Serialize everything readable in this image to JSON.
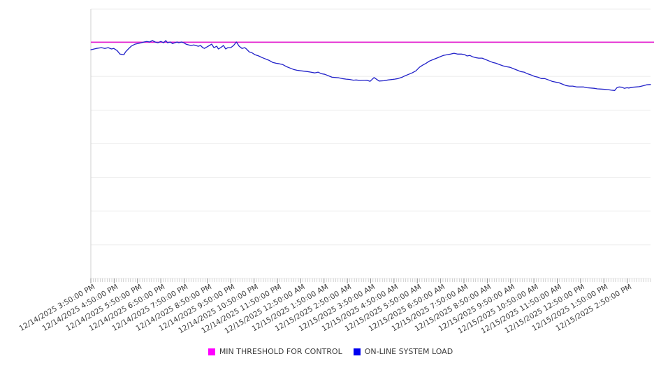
{
  "legend": {
    "items": [
      {
        "label": "MIN THRESHOLD FOR CONTROL",
        "color": "#ff00ff"
      },
      {
        "label": "ON-LINE SYSTEM LOAD",
        "color": "#0000f0"
      }
    ]
  },
  "chart_data": {
    "type": "line",
    "title": "",
    "xlabel": "",
    "ylabel": "",
    "x_axis": {
      "tick_labels": [
        "12/14/2025 3:50:00 PM",
        "12/14/2025 4:50:00 PM",
        "12/14/2025 5:50:00 PM",
        "12/14/2025 6:50:00 PM",
        "12/14/2025 7:50:00 PM",
        "12/14/2025 8:50:00 PM",
        "12/14/2025 9:50:00 PM",
        "12/14/2025 10:50:00 PM",
        "12/14/2025 11:50:00 PM",
        "12/15/2025 12:50:00 AM",
        "12/15/2025 1:50:00 AM",
        "12/15/2025 2:50:00 AM",
        "12/15/2025 3:50:00 AM",
        "12/15/2025 4:50:00 AM",
        "12/15/2025 5:50:00 AM",
        "12/15/2025 6:50:00 AM",
        "12/15/2025 7:50:00 AM",
        "12/15/2025 8:50:00 AM",
        "12/15/2025 9:50:00 AM",
        "12/15/2025 10:50:00 AM",
        "12/15/2025 11:50:00 AM",
        "12/15/2025 12:50:00 PM",
        "12/15/2025 1:50:00 PM",
        "12/15/2025 2:50:00 PM"
      ],
      "minor_ticks_total": 240,
      "label_rotation_deg": -30
    },
    "y_axis": {
      "tick_labels_visible": false,
      "range": [
        0,
        100
      ]
    },
    "grid": {
      "horizontal_lines": 9,
      "vertical_lines": 0
    },
    "series": [
      {
        "name": "MIN THRESHOLD FOR CONTROL",
        "type": "horizontal-threshold",
        "color": "#e620d2",
        "value": 87.7
      },
      {
        "name": "ON-LINE SYSTEM LOAD",
        "type": "line",
        "color": "#2121c9",
        "x_unit": "percent-of-time-axis",
        "points": [
          [
            0,
            84.9
          ],
          [
            1,
            85.4
          ],
          [
            1.9,
            85.7
          ],
          [
            2.5,
            85.4
          ],
          [
            3.1,
            85.7
          ],
          [
            3.7,
            85.2
          ],
          [
            4.1,
            85.4
          ],
          [
            4.7,
            84.6
          ],
          [
            5.2,
            83.3
          ],
          [
            5.9,
            83.1
          ],
          [
            6.2,
            84.1
          ],
          [
            6.7,
            85.2
          ],
          [
            7.2,
            86.2
          ],
          [
            7.9,
            87.0
          ],
          [
            8.4,
            87.2
          ],
          [
            9.0,
            87.5
          ],
          [
            9.5,
            87.8
          ],
          [
            10.0,
            88.0
          ],
          [
            10.5,
            87.8
          ],
          [
            11.0,
            88.3
          ],
          [
            11.5,
            87.8
          ],
          [
            12.0,
            87.5
          ],
          [
            12.5,
            88.0
          ],
          [
            13.0,
            87.5
          ],
          [
            13.4,
            88.3
          ],
          [
            13.7,
            87.5
          ],
          [
            14.2,
            87.8
          ],
          [
            14.6,
            87.2
          ],
          [
            15.0,
            87.5
          ],
          [
            15.4,
            87.8
          ],
          [
            15.7,
            87.5
          ],
          [
            16.2,
            87.8
          ],
          [
            16.6,
            87.5
          ],
          [
            17.0,
            87.0
          ],
          [
            17.5,
            86.7
          ],
          [
            17.9,
            86.5
          ],
          [
            18.4,
            86.7
          ],
          [
            19.2,
            86.2
          ],
          [
            19.6,
            86.5
          ],
          [
            20.0,
            85.7
          ],
          [
            20.3,
            85.4
          ],
          [
            20.7,
            85.9
          ],
          [
            21.2,
            86.5
          ],
          [
            21.6,
            87.0
          ],
          [
            22.0,
            85.7
          ],
          [
            22.5,
            86.2
          ],
          [
            22.8,
            85.2
          ],
          [
            23.2,
            85.7
          ],
          [
            23.7,
            86.5
          ],
          [
            24.1,
            85.2
          ],
          [
            24.5,
            85.7
          ],
          [
            25.0,
            85.7
          ],
          [
            25.5,
            86.5
          ],
          [
            26.0,
            87.8
          ],
          [
            26.5,
            86.2
          ],
          [
            27.0,
            85.4
          ],
          [
            27.5,
            85.7
          ],
          [
            27.8,
            85.2
          ],
          [
            28.3,
            84.1
          ],
          [
            28.7,
            83.9
          ],
          [
            29.3,
            83.1
          ],
          [
            30.0,
            82.6
          ],
          [
            30.6,
            82.0
          ],
          [
            31.2,
            81.5
          ],
          [
            31.8,
            81.0
          ],
          [
            32.5,
            80.2
          ],
          [
            33.1,
            79.9
          ],
          [
            33.7,
            79.7
          ],
          [
            34.3,
            79.4
          ],
          [
            35.0,
            78.6
          ],
          [
            35.6,
            78.1
          ],
          [
            36.2,
            77.6
          ],
          [
            36.8,
            77.3
          ],
          [
            37.5,
            77.1
          ],
          [
            38.7,
            76.8
          ],
          [
            39.3,
            76.6
          ],
          [
            40.0,
            76.3
          ],
          [
            40.6,
            76.6
          ],
          [
            41.2,
            76.0
          ],
          [
            41.8,
            75.8
          ],
          [
            42.4,
            75.3
          ],
          [
            43.1,
            74.7
          ],
          [
            44.3,
            74.5
          ],
          [
            44.9,
            74.2
          ],
          [
            45.6,
            74.0
          ],
          [
            46.2,
            73.9
          ],
          [
            46.9,
            73.6
          ],
          [
            47.4,
            73.7
          ],
          [
            48.1,
            73.5
          ],
          [
            49.3,
            73.6
          ],
          [
            49.9,
            73.2
          ],
          [
            50.6,
            74.6
          ],
          [
            51.5,
            73.3
          ],
          [
            52.4,
            73.4
          ],
          [
            53.1,
            73.7
          ],
          [
            54.3,
            74.0
          ],
          [
            54.9,
            74.2
          ],
          [
            55.6,
            74.7
          ],
          [
            56.2,
            75.3
          ],
          [
            56.8,
            75.8
          ],
          [
            57.4,
            76.3
          ],
          [
            58.1,
            77.1
          ],
          [
            58.7,
            78.4
          ],
          [
            59.3,
            79.2
          ],
          [
            59.9,
            79.9
          ],
          [
            60.5,
            80.7
          ],
          [
            61.2,
            81.3
          ],
          [
            61.8,
            81.8
          ],
          [
            62.4,
            82.3
          ],
          [
            63.0,
            82.8
          ],
          [
            63.7,
            83.1
          ],
          [
            64.3,
            83.3
          ],
          [
            64.9,
            83.6
          ],
          [
            65.5,
            83.3
          ],
          [
            66.2,
            83.3
          ],
          [
            66.8,
            83.1
          ],
          [
            67.2,
            82.6
          ],
          [
            67.7,
            82.8
          ],
          [
            68.2,
            82.3
          ],
          [
            68.7,
            82.0
          ],
          [
            69.3,
            81.8
          ],
          [
            69.9,
            81.8
          ],
          [
            70.5,
            81.3
          ],
          [
            71.2,
            80.7
          ],
          [
            71.8,
            80.2
          ],
          [
            72.4,
            79.9
          ],
          [
            73.0,
            79.4
          ],
          [
            73.7,
            78.9
          ],
          [
            74.3,
            78.6
          ],
          [
            74.9,
            78.4
          ],
          [
            75.5,
            77.9
          ],
          [
            76.2,
            77.3
          ],
          [
            76.8,
            76.8
          ],
          [
            77.4,
            76.6
          ],
          [
            78.0,
            76.0
          ],
          [
            78.7,
            75.5
          ],
          [
            79.3,
            75.0
          ],
          [
            79.9,
            74.7
          ],
          [
            80.5,
            74.2
          ],
          [
            81.1,
            74.2
          ],
          [
            81.8,
            73.7
          ],
          [
            82.4,
            73.2
          ],
          [
            83.0,
            72.9
          ],
          [
            83.6,
            72.7
          ],
          [
            84.3,
            72.1
          ],
          [
            84.9,
            71.6
          ],
          [
            85.5,
            71.4
          ],
          [
            86.1,
            71.4
          ],
          [
            86.8,
            71.1
          ],
          [
            88.0,
            71.1
          ],
          [
            88.6,
            70.8
          ],
          [
            89.9,
            70.6
          ],
          [
            90.5,
            70.4
          ],
          [
            91.1,
            70.3
          ],
          [
            91.8,
            70.2
          ],
          [
            92.4,
            70.1
          ],
          [
            93.0,
            69.9
          ],
          [
            93.6,
            69.8
          ],
          [
            94.0,
            70.8
          ],
          [
            94.4,
            71.1
          ],
          [
            94.9,
            71.0
          ],
          [
            95.3,
            70.6
          ],
          [
            95.8,
            70.8
          ],
          [
            96.1,
            70.7
          ],
          [
            96.8,
            71.0
          ],
          [
            97.4,
            71.1
          ],
          [
            98.0,
            71.2
          ],
          [
            98.6,
            71.5
          ],
          [
            99.3,
            71.9
          ],
          [
            100,
            72.0
          ]
        ]
      }
    ]
  }
}
